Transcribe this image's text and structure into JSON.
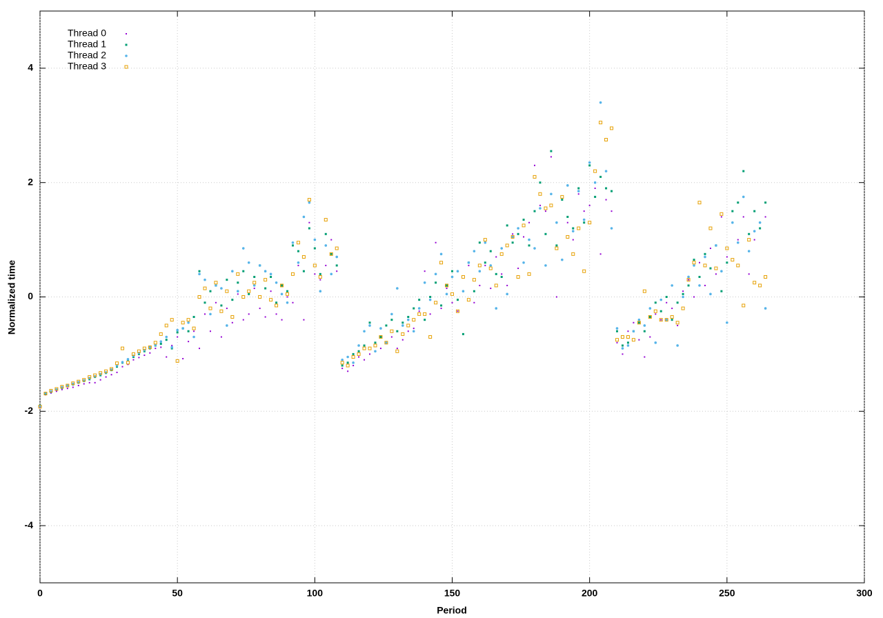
{
  "chart_data": {
    "type": "scatter",
    "x_label": "Period",
    "y_label": "Normalized time",
    "xlim": [
      0,
      300
    ],
    "xticks": [
      0,
      50,
      100,
      150,
      200,
      250,
      300
    ],
    "ylim": [
      -5,
      5
    ],
    "yticks": [
      -4,
      -2,
      0,
      2,
      4
    ],
    "grid": true,
    "legend": "upper-left",
    "x": [
      0,
      2,
      4,
      6,
      8,
      10,
      12,
      14,
      16,
      18,
      20,
      22,
      24,
      26,
      28,
      30,
      32,
      34,
      36,
      38,
      40,
      42,
      44,
      46,
      48,
      50,
      52,
      54,
      56,
      58,
      60,
      62,
      64,
      66,
      68,
      70,
      72,
      74,
      76,
      78,
      80,
      82,
      84,
      86,
      88,
      90,
      92,
      94,
      96,
      98,
      100,
      102,
      104,
      106,
      108,
      110,
      112,
      114,
      116,
      118,
      120,
      122,
      124,
      126,
      128,
      130,
      132,
      134,
      136,
      138,
      140,
      142,
      144,
      146,
      148,
      150,
      152,
      154,
      156,
      158,
      160,
      162,
      164,
      166,
      168,
      170,
      172,
      174,
      176,
      178,
      180,
      182,
      184,
      186,
      188,
      190,
      192,
      194,
      196,
      198,
      200,
      202,
      204,
      206,
      208,
      210,
      212,
      214,
      216,
      218,
      220,
      222,
      224,
      226,
      228,
      230,
      232,
      234,
      236,
      238,
      240,
      242,
      244,
      246,
      248,
      250,
      252,
      254,
      256,
      258,
      260,
      262,
      264
    ],
    "series": [
      {
        "name": "Thread 0",
        "color": "#9400d3",
        "marker": "dot",
        "values": [
          -1.93,
          -1.71,
          -1.68,
          -1.65,
          -1.62,
          -1.6,
          -1.58,
          -1.55,
          -1.52,
          -1.5,
          -1.5,
          -1.45,
          -1.4,
          -1.36,
          -1.32,
          -1.22,
          -1.18,
          -1.1,
          -1.06,
          -1.02,
          -0.98,
          -0.9,
          -0.88,
          -1.05,
          -0.85,
          -0.7,
          -1.08,
          -0.78,
          -0.6,
          -0.9,
          -0.3,
          -0.6,
          -0.1,
          -0.7,
          -0.2,
          -0.45,
          0.05,
          -0.4,
          -0.3,
          0.15,
          -0.2,
          -0.35,
          0.1,
          -0.3,
          -0.4,
          0.0,
          -0.1,
          0.55,
          -0.4,
          1.3,
          0.4,
          0.3,
          0.55,
          1.0,
          0.45,
          -1.25,
          -1.3,
          -1.2,
          -1.05,
          -1.1,
          -1.0,
          -0.95,
          -0.9,
          -0.8,
          -0.7,
          -0.9,
          -0.75,
          -0.6,
          -0.55,
          -0.25,
          0.45,
          -0.3,
          0.95,
          -0.2,
          0.15,
          -0.1,
          -0.25,
          0.1,
          0.55,
          -0.1,
          0.2,
          0.55,
          0.15,
          0.7,
          0.4,
          0.2,
          1.1,
          0.5,
          1.05,
          1.3,
          2.3,
          1.6,
          1.5,
          2.45,
          0.0,
          1.7,
          1.3,
          1.0,
          1.8,
          1.5,
          1.6,
          1.9,
          0.75,
          1.7,
          1.5,
          -0.8,
          -1.0,
          -0.6,
          -0.45,
          -0.75,
          -1.05,
          -0.7,
          -0.3,
          -0.4,
          -0.1,
          -0.2,
          -0.5,
          0.1,
          0.3,
          0.0,
          0.6,
          0.2,
          0.85,
          0.4,
          1.4,
          0.7,
          1.3,
          1.0,
          1.4,
          0.4,
          1.0,
          1.3,
          1.4
        ]
      },
      {
        "name": "Thread 1",
        "color": "#009e73",
        "marker": "square",
        "values": [
          -1.9,
          -1.69,
          -1.66,
          -1.62,
          -1.59,
          -1.56,
          -1.53,
          -1.5,
          -1.47,
          -1.44,
          -1.4,
          -1.37,
          -1.33,
          -1.28,
          -1.22,
          -1.15,
          -1.1,
          -1.05,
          -1.0,
          -0.95,
          -0.9,
          -0.85,
          -0.82,
          -0.75,
          -0.9,
          -0.62,
          -0.55,
          -0.6,
          -0.35,
          0.45,
          -0.1,
          0.1,
          0.2,
          -0.15,
          0.3,
          -0.05,
          0.25,
          0.45,
          0.05,
          0.35,
          0.55,
          0.15,
          0.35,
          -0.1,
          0.2,
          0.1,
          0.9,
          0.8,
          0.45,
          1.2,
          0.85,
          0.4,
          1.1,
          0.75,
          0.55,
          -1.2,
          -1.15,
          -1.0,
          -0.95,
          -0.85,
          -0.45,
          -0.8,
          -0.7,
          -0.5,
          -0.4,
          -0.6,
          -0.45,
          -0.35,
          -0.2,
          -0.05,
          -0.4,
          0.0,
          0.25,
          -0.15,
          0.2,
          0.45,
          -0.05,
          -0.65,
          0.6,
          0.1,
          0.95,
          0.6,
          0.8,
          0.4,
          0.35,
          1.25,
          0.95,
          1.1,
          1.35,
          0.9,
          1.5,
          2.0,
          1.1,
          2.55,
          0.9,
          1.7,
          1.4,
          1.2,
          1.9,
          1.3,
          2.3,
          1.75,
          2.1,
          1.9,
          1.85,
          -0.6,
          -0.85,
          -0.8,
          -0.6,
          -0.45,
          -0.6,
          -0.35,
          -0.1,
          -0.25,
          0.0,
          -0.4,
          -0.1,
          0.05,
          0.2,
          0.65,
          0.35,
          0.75,
          0.5,
          0.9,
          0.1,
          0.6,
          1.5,
          1.65,
          2.2,
          1.1,
          1.5,
          1.2,
          1.65
        ]
      },
      {
        "name": "Thread 2",
        "color": "#56b4e9",
        "marker": "circle",
        "values": [
          -1.91,
          -1.68,
          -1.65,
          -1.62,
          -1.58,
          -1.55,
          -1.52,
          -1.49,
          -1.46,
          -1.42,
          -1.39,
          -1.35,
          -1.32,
          -1.27,
          -1.2,
          -1.14,
          -1.09,
          -1.03,
          -0.98,
          -0.93,
          -0.88,
          -0.84,
          -0.78,
          -0.7,
          -0.88,
          -0.58,
          -0.55,
          -0.45,
          -0.7,
          0.4,
          0.3,
          -0.3,
          0.2,
          0.15,
          -0.5,
          0.45,
          0.1,
          0.85,
          0.6,
          0.2,
          0.55,
          0.45,
          0.4,
          0.25,
          0.05,
          -0.1,
          0.95,
          0.6,
          1.4,
          1.65,
          1.0,
          0.1,
          0.9,
          0.4,
          0.7,
          -1.1,
          -1.05,
          -1.15,
          -0.85,
          -0.6,
          -0.5,
          -0.95,
          -0.55,
          -0.8,
          -0.3,
          0.15,
          -0.5,
          -0.4,
          -0.6,
          -0.2,
          0.25,
          -0.05,
          0.4,
          0.75,
          0.05,
          0.35,
          0.45,
          0.1,
          0.6,
          0.8,
          0.45,
          0.95,
          0.55,
          -0.2,
          0.85,
          0.05,
          1.05,
          1.2,
          0.6,
          1.0,
          0.85,
          1.55,
          0.55,
          1.8,
          1.3,
          0.65,
          1.95,
          1.15,
          1.85,
          1.35,
          2.35,
          2.0,
          3.4,
          2.2,
          1.2,
          -0.55,
          -0.9,
          -0.85,
          -0.6,
          -0.4,
          -0.5,
          -0.2,
          -0.8,
          -0.05,
          -0.4,
          0.2,
          -0.85,
          0.0,
          0.35,
          0.55,
          0.2,
          0.7,
          0.05,
          0.9,
          0.45,
          -0.45,
          1.3,
          0.95,
          1.75,
          0.8,
          1.15,
          1.3,
          -0.2
        ]
      },
      {
        "name": "Thread 3",
        "color": "#e69f00",
        "marker": "open-square",
        "values": [
          -1.92,
          -1.69,
          -1.64,
          -1.61,
          -1.57,
          -1.55,
          -1.51,
          -1.48,
          -1.45,
          -1.4,
          -1.37,
          -1.33,
          -1.3,
          -1.26,
          -1.16,
          -0.9,
          -1.15,
          -1.0,
          -0.95,
          -0.9,
          -0.88,
          -0.8,
          -0.65,
          -0.5,
          -0.4,
          -1.12,
          -0.45,
          -0.4,
          -0.55,
          0.0,
          0.15,
          -0.2,
          0.25,
          -0.25,
          0.1,
          -0.35,
          0.4,
          0.0,
          0.1,
          0.25,
          0.0,
          0.3,
          -0.05,
          -0.15,
          0.2,
          0.05,
          0.4,
          0.95,
          0.7,
          1.7,
          0.55,
          0.35,
          1.35,
          0.75,
          0.85,
          -1.15,
          -1.2,
          -1.05,
          -1.0,
          -0.9,
          -0.9,
          -0.85,
          -0.7,
          -0.8,
          -0.6,
          -0.95,
          -0.65,
          -0.5,
          -0.4,
          -0.3,
          -0.3,
          -0.7,
          -0.1,
          0.6,
          0.2,
          0.05,
          -0.25,
          0.35,
          -0.05,
          0.3,
          0.55,
          1.0,
          0.5,
          0.2,
          0.75,
          0.9,
          1.05,
          0.35,
          1.25,
          0.4,
          2.1,
          1.8,
          1.55,
          1.6,
          0.85,
          1.75,
          1.05,
          0.75,
          1.2,
          0.45,
          1.3,
          2.2,
          3.05,
          2.75,
          2.95,
          -0.75,
          -0.7,
          -0.7,
          -0.75,
          -0.45,
          0.1,
          -0.35,
          -0.25,
          -0.4,
          -0.4,
          -0.35,
          -0.45,
          -0.2,
          0.3,
          0.6,
          1.65,
          0.55,
          1.2,
          0.5,
          1.45,
          0.85,
          0.65,
          0.55,
          -0.15,
          1.0,
          0.25,
          0.2,
          0.35
        ]
      }
    ]
  }
}
